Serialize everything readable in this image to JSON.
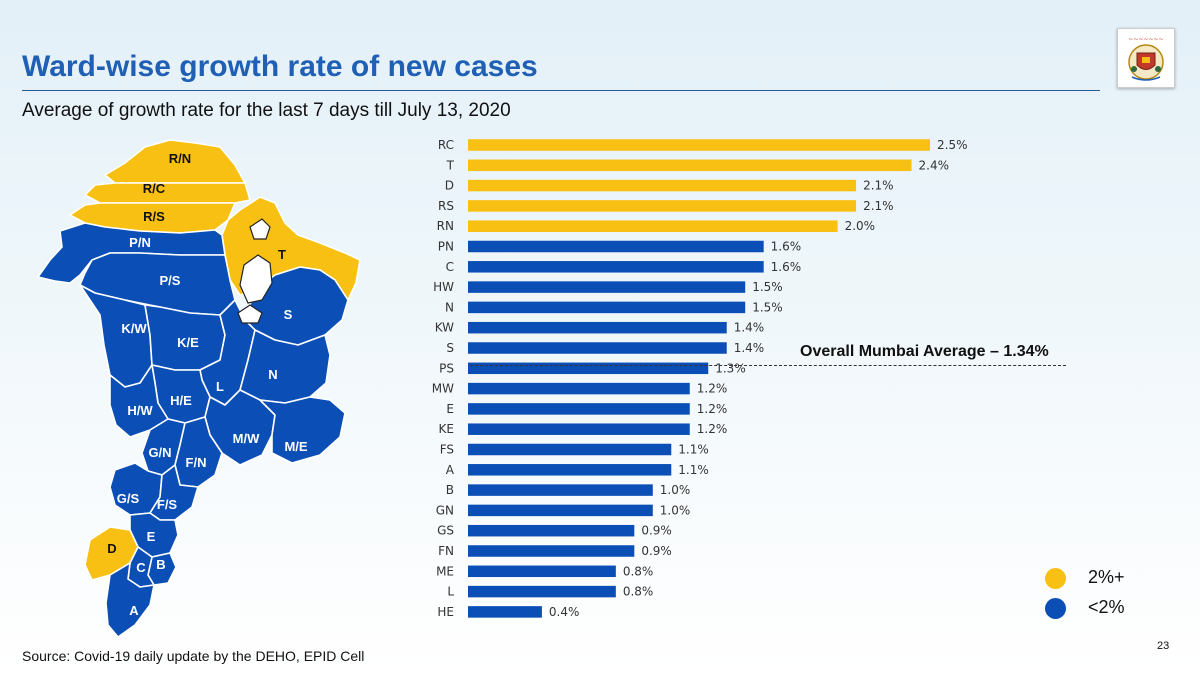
{
  "header": {
    "title": "Ward-wise growth rate of new cases",
    "subtitle": "Average of growth rate for the last 7 days till July 13, 2020"
  },
  "logo": {
    "name": "mcgm-emblem"
  },
  "map": {
    "ward_labels": [
      "R/N",
      "R/C",
      "R/S",
      "P/N",
      "T",
      "P/S",
      "S",
      "K/W",
      "K/E",
      "N",
      "L",
      "H/E",
      "H/W",
      "M/W",
      "M/E",
      "G/N",
      "F/N",
      "G/S",
      "F/S",
      "E",
      "D",
      "B",
      "C",
      "A"
    ]
  },
  "colors": {
    "high": "#f8c012",
    "low": "#0b4fb6"
  },
  "chart_data": {
    "type": "bar",
    "orientation": "horizontal",
    "categories": [
      "RC",
      "T",
      "D",
      "RS",
      "RN",
      "PN",
      "C",
      "HW",
      "N",
      "KW",
      "S",
      "PS",
      "MW",
      "E",
      "KE",
      "FS",
      "A",
      "B",
      "GN",
      "GS",
      "FN",
      "ME",
      "L",
      "HE"
    ],
    "values": [
      2.5,
      2.4,
      2.1,
      2.1,
      2.0,
      1.6,
      1.6,
      1.5,
      1.5,
      1.4,
      1.4,
      1.3,
      1.2,
      1.2,
      1.2,
      1.1,
      1.1,
      1.0,
      1.0,
      0.9,
      0.9,
      0.8,
      0.8,
      0.4
    ],
    "value_labels": [
      "2.5%",
      "2.4%",
      "2.1%",
      "2.1%",
      "2.0%",
      "1.6%",
      "1.6%",
      "1.5%",
      "1.5%",
      "1.4%",
      "1.4%",
      "1.3%",
      "1.2%",
      "1.2%",
      "1.2%",
      "1.1%",
      "1.1%",
      "1.0%",
      "1.0%",
      "0.9%",
      "0.9%",
      "0.8%",
      "0.8%",
      "0.4%"
    ],
    "threshold": 2.0,
    "xlim": [
      0,
      2.5
    ],
    "average": {
      "value": 1.34,
      "label": "Overall Mumbai Average – 1.34%"
    }
  },
  "legend": [
    {
      "label": "2%+",
      "color": "#f8c012"
    },
    {
      "label": "<2%",
      "color": "#0b4fb6"
    }
  ],
  "footer": {
    "source": "Source: Covid-19 daily update by the DEHO, EPID Cell",
    "page_number": "23"
  }
}
